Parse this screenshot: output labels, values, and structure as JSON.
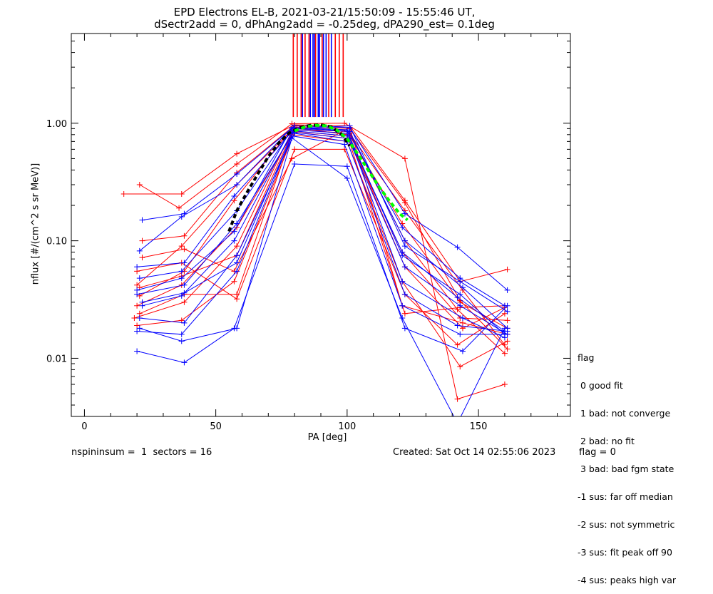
{
  "title": {
    "line1": "EPD Electrons EL-B, 2021-03-21/15:50:09 - 15:55:46 UT,",
    "line2": "dSectr2add = 0, dPhAng2add = -0.25deg, dPA290_est=   0.1deg"
  },
  "footer": {
    "left": "nspininsum =  1  sectors = 16",
    "created": "Created: Sat Oct 14 02:55:06 2023",
    "flag": "flag = 0"
  },
  "legend": {
    "title": "flag",
    "items": [
      " 0 good fit",
      " 1 bad: not converge",
      " 2 bad: no fit",
      " 3 bad: bad fgm state",
      "-1 sus: far off median",
      "-2 sus: not symmetric",
      "-3 sus: fit peak off 90",
      "-4 sus: peaks high var"
    ]
  },
  "chart_data": {
    "type": "line",
    "xlabel": "PA [deg]",
    "ylabel": "nflux [#/(cm^2 s sr MeV)]",
    "xlim": [
      -5,
      185
    ],
    "ylim": [
      0.0032,
      5.8
    ],
    "yscale": "log",
    "x_ticks": [
      0,
      50,
      100,
      150
    ],
    "y_ticks": [
      0.01,
      0.1,
      1.0
    ],
    "y_tick_labels": [
      "0.01",
      "0.10",
      "1.00"
    ],
    "colors": {
      "red": "#ff0000",
      "blue": "#0000ff",
      "fit_black": "#000000",
      "fit_green": "#00ff00"
    },
    "series": [
      {
        "color": "red",
        "x": [
          15,
          37,
          58,
          80,
          101,
          122,
          143,
          161
        ],
        "y": [
          0.25,
          0.25,
          0.55,
          0.97,
          0.95,
          0.22,
          0.045,
          0.057
        ]
      },
      {
        "color": "red",
        "x": [
          21,
          36,
          58,
          79,
          99,
          122,
          142,
          160
        ],
        "y": [
          0.3,
          0.19,
          0.45,
          0.99,
          1.0,
          0.5,
          0.0045,
          0.006
        ]
      },
      {
        "color": "red",
        "x": [
          22,
          38,
          58,
          80,
          101,
          122,
          143,
          161
        ],
        "y": [
          0.1,
          0.11,
          0.38,
          0.96,
          0.9,
          0.21,
          0.031,
          0.012
        ]
      },
      {
        "color": "red",
        "x": [
          20,
          37,
          58,
          80,
          100,
          122,
          144,
          160
        ],
        "y": [
          0.042,
          0.09,
          0.3,
          0.93,
          0.88,
          0.18,
          0.038,
          0.013
        ]
      },
      {
        "color": "red",
        "x": [
          21,
          38,
          57,
          79,
          100,
          121,
          143,
          161
        ],
        "y": [
          0.034,
          0.055,
          0.22,
          0.9,
          0.85,
          0.14,
          0.03,
          0.018
        ]
      },
      {
        "color": "red",
        "x": [
          20,
          37,
          58,
          80,
          101,
          122,
          142,
          160
        ],
        "y": [
          0.028,
          0.042,
          0.13,
          0.88,
          0.82,
          0.1,
          0.026,
          0.011
        ]
      },
      {
        "color": "red",
        "x": [
          19,
          38,
          58,
          79,
          100,
          121,
          143,
          161
        ],
        "y": [
          0.022,
          0.03,
          0.09,
          0.86,
          0.78,
          0.08,
          0.022,
          0.021
        ]
      },
      {
        "color": "red",
        "x": [
          20,
          37,
          57,
          80,
          101,
          122,
          144,
          160
        ],
        "y": [
          0.019,
          0.021,
          0.045,
          0.84,
          0.74,
          0.06,
          0.018,
          0.027
        ]
      },
      {
        "color": "red",
        "x": [
          21,
          38,
          58,
          79,
          100,
          121,
          143,
          161
        ],
        "y": [
          0.024,
          0.035,
          0.035,
          0.8,
          0.7,
          0.045,
          0.0085,
          0.014
        ]
      },
      {
        "color": "red",
        "x": [
          20,
          37,
          58,
          80,
          99,
          122,
          142,
          160
        ],
        "y": [
          0.055,
          0.065,
          0.032,
          0.6,
          0.6,
          0.035,
          0.013,
          0.024
        ]
      },
      {
        "color": "red",
        "x": [
          22,
          38,
          57,
          79,
          101,
          121,
          144,
          161
        ],
        "y": [
          0.072,
          0.085,
          0.055,
          0.5,
          0.92,
          0.028,
          0.02,
          0.016
        ]
      },
      {
        "color": "red",
        "x": [
          21,
          37,
          58,
          80,
          100,
          122,
          143,
          160
        ],
        "y": [
          0.04,
          0.05,
          0.075,
          0.92,
          0.8,
          0.024,
          0.027,
          0.028
        ]
      },
      {
        "color": "blue",
        "x": [
          22,
          38,
          58,
          80,
          101,
          122,
          142,
          161
        ],
        "y": [
          0.15,
          0.17,
          0.37,
          0.95,
          0.92,
          0.17,
          0.088,
          0.038
        ]
      },
      {
        "color": "blue",
        "x": [
          21,
          37,
          58,
          79,
          100,
          121,
          143,
          160
        ],
        "y": [
          0.082,
          0.16,
          0.3,
          0.92,
          0.88,
          0.13,
          0.048,
          0.028
        ]
      },
      {
        "color": "blue",
        "x": [
          20,
          38,
          57,
          80,
          101,
          122,
          144,
          161
        ],
        "y": [
          0.06,
          0.065,
          0.24,
          0.9,
          0.85,
          0.1,
          0.04,
          0.018
        ]
      },
      {
        "color": "blue",
        "x": [
          21,
          37,
          58,
          79,
          100,
          121,
          142,
          160
        ],
        "y": [
          0.048,
          0.055,
          0.18,
          0.88,
          0.82,
          0.08,
          0.033,
          0.017
        ]
      },
      {
        "color": "blue",
        "x": [
          20,
          38,
          58,
          80,
          100,
          122,
          143,
          161
        ],
        "y": [
          0.035,
          0.042,
          0.14,
          0.86,
          0.78,
          0.06,
          0.028,
          0.016
        ]
      },
      {
        "color": "blue",
        "x": [
          22,
          37,
          57,
          79,
          101,
          121,
          144,
          160
        ],
        "y": [
          0.028,
          0.034,
          0.1,
          0.84,
          0.74,
          0.045,
          0.022,
          0.015
        ]
      },
      {
        "color": "blue",
        "x": [
          21,
          38,
          58,
          80,
          100,
          122,
          142,
          161
        ],
        "y": [
          0.022,
          0.02,
          0.075,
          0.82,
          0.7,
          0.035,
          0.019,
          0.017
        ]
      },
      {
        "color": "blue",
        "x": [
          20,
          37,
          58,
          79,
          99,
          121,
          143,
          160
        ],
        "y": [
          0.017,
          0.016,
          0.055,
          0.78,
          0.66,
          0.028,
          0.016,
          0.016
        ]
      },
      {
        "color": "blue",
        "x": [
          20,
          38,
          57,
          80,
          100,
          122,
          144,
          161
        ],
        "y": [
          0.0115,
          0.0092,
          0.018,
          0.45,
          0.43,
          0.018,
          0.0115,
          0.028
        ]
      },
      {
        "color": "blue",
        "x": [
          21,
          37,
          58,
          79,
          100,
          121,
          142,
          160
        ],
        "y": [
          0.018,
          0.014,
          0.018,
          0.75,
          0.34,
          0.022,
          0.0028,
          0.018
        ]
      },
      {
        "color": "blue",
        "x": [
          22,
          38,
          58,
          80,
          101,
          122,
          143,
          161
        ],
        "y": [
          0.03,
          0.036,
          0.065,
          0.9,
          0.95,
          0.09,
          0.045,
          0.025
        ]
      },
      {
        "color": "blue",
        "x": [
          20,
          37,
          57,
          79,
          100,
          121,
          143,
          160
        ],
        "y": [
          0.038,
          0.048,
          0.12,
          0.92,
          0.86,
          0.075,
          0.035,
          0.016
        ]
      }
    ],
    "fits": [
      {
        "color": "fit_black",
        "style": "dashed",
        "x": [
          55,
          58,
          62,
          66,
          70,
          74,
          78,
          82,
          86,
          90,
          94,
          98,
          101
        ],
        "y": [
          0.12,
          0.18,
          0.26,
          0.37,
          0.52,
          0.68,
          0.83,
          0.92,
          0.96,
          0.97,
          0.93,
          0.8,
          0.64
        ]
      },
      {
        "color": "fit_green",
        "style": "dashed",
        "x": [
          80,
          84,
          88,
          92,
          96,
          100,
          104,
          108,
          112,
          116,
          120,
          123
        ],
        "y": [
          0.86,
          0.93,
          0.96,
          0.95,
          0.88,
          0.74,
          0.55,
          0.4,
          0.29,
          0.22,
          0.17,
          0.15
        ]
      }
    ],
    "vertical_markers": [
      {
        "color": "red",
        "x": [
          79.5,
          81.0,
          82.5,
          84.0,
          85.5,
          88.0,
          90.5,
          93.0,
          95.5,
          97.0,
          98.5
        ]
      },
      {
        "color": "blue",
        "x": [
          83.0,
          86.0,
          87.0,
          87.5,
          89.0,
          89.5,
          91.0,
          92.0,
          94.0
        ]
      }
    ],
    "marker_range_y": [
      1.13,
      5.8
    ]
  }
}
